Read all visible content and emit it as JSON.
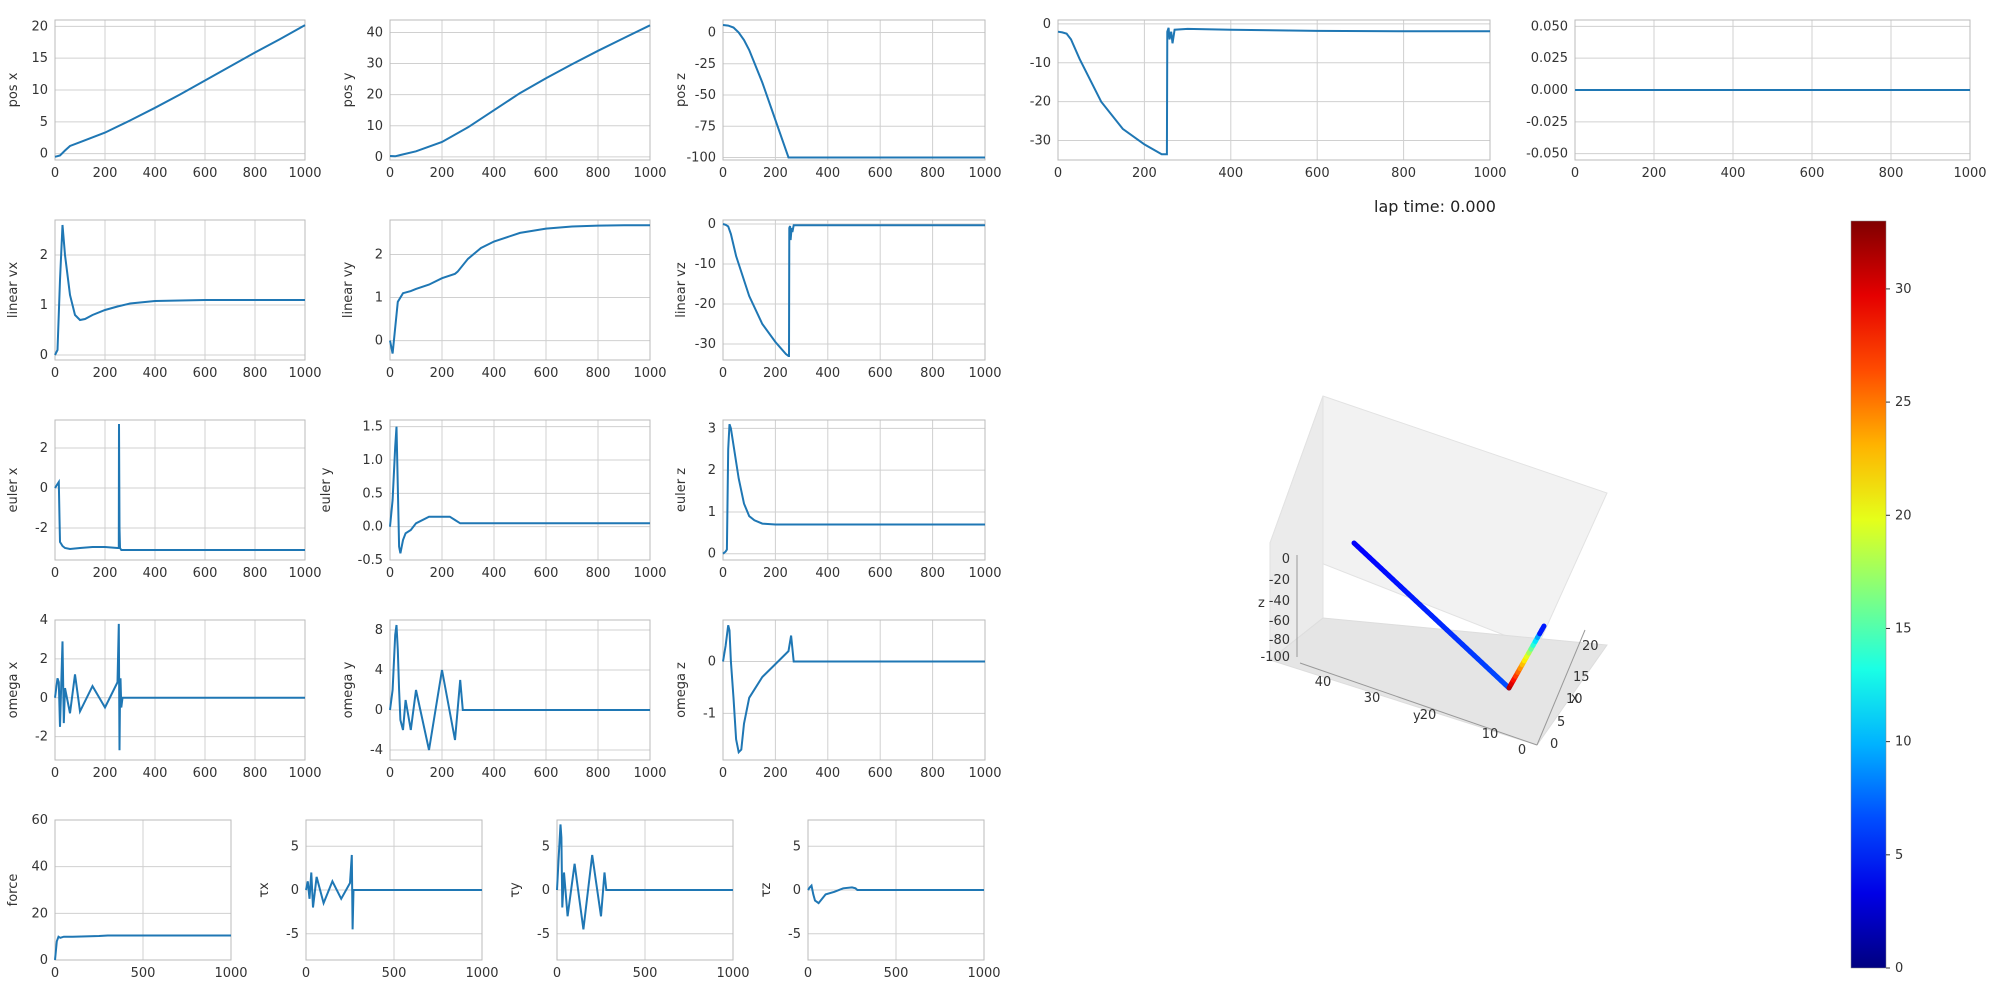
{
  "lap_time": {
    "label": "lap time:",
    "value": "0.000"
  },
  "colors": {
    "line": "#1f77b4",
    "grid": "#d0d0d0",
    "frame": "#bbbbbb",
    "text": "#333333"
  },
  "chart_data": [
    {
      "type": "line",
      "ylabel": "pos x",
      "xlim": [
        0,
        1000
      ],
      "ylim": [
        -1,
        21
      ],
      "xticks": [
        0,
        200,
        400,
        600,
        800,
        1000
      ],
      "yticks": [
        0,
        5,
        10,
        15,
        20
      ],
      "series": [
        {
          "x": [
            0,
            20,
            40,
            60,
            100,
            200,
            300,
            400,
            500,
            600,
            700,
            800,
            900,
            1000
          ],
          "y": [
            -0.5,
            -0.3,
            0.5,
            1.2,
            1.8,
            3.3,
            5.2,
            7.2,
            9.3,
            11.5,
            13.7,
            15.9,
            18.0,
            20.2
          ]
        }
      ]
    },
    {
      "type": "line",
      "ylabel": "pos y",
      "xlim": [
        0,
        1000
      ],
      "ylim": [
        -1,
        44
      ],
      "xticks": [
        0,
        200,
        400,
        600,
        800,
        1000
      ],
      "yticks": [
        0,
        10,
        20,
        30,
        40
      ],
      "series": [
        {
          "x": [
            0,
            20,
            40,
            100,
            200,
            300,
            400,
            500,
            600,
            700,
            800,
            900,
            1000
          ],
          "y": [
            0.3,
            0.2,
            0.6,
            1.8,
            4.8,
            9.5,
            15.0,
            20.5,
            25.3,
            29.8,
            34.1,
            38.2,
            42.3
          ]
        }
      ]
    },
    {
      "type": "line",
      "ylabel": "pos z",
      "xlim": [
        0,
        1000
      ],
      "ylim": [
        -102,
        10
      ],
      "xticks": [
        0,
        200,
        400,
        600,
        800,
        1000
      ],
      "yticks": [
        0,
        -25,
        -50,
        -75,
        -100
      ],
      "series": [
        {
          "x": [
            0,
            20,
            40,
            60,
            80,
            100,
            150,
            200,
            250,
            260,
            400,
            600,
            800,
            1000
          ],
          "y": [
            6,
            5.5,
            4,
            0,
            -6,
            -14,
            -40,
            -70,
            -100,
            -100,
            -100,
            -100,
            -100,
            -100
          ]
        }
      ]
    },
    {
      "type": "line",
      "ylabel": "",
      "xlim": [
        0,
        1000
      ],
      "ylim": [
        -35,
        1
      ],
      "xticks": [
        0,
        200,
        400,
        600,
        800,
        1000
      ],
      "yticks": [
        0,
        -10,
        -20,
        -30
      ],
      "series": [
        {
          "x": [
            0,
            10,
            20,
            30,
            50,
            100,
            150,
            200,
            240,
            250,
            252,
            253,
            256,
            258,
            262,
            265,
            270,
            300,
            400,
            600,
            800,
            1000
          ],
          "y": [
            -2,
            -2.2,
            -2.5,
            -4,
            -9,
            -20,
            -27,
            -31,
            -33.5,
            -33.5,
            -33.5,
            -2,
            -1,
            -4,
            -2,
            -5,
            -1.5,
            -1.3,
            -1.5,
            -1.8,
            -1.9,
            -1.9
          ]
        }
      ]
    },
    {
      "type": "line",
      "ylabel": "",
      "xlim": [
        0,
        1000
      ],
      "ylim": [
        -0.055,
        0.055
      ],
      "xticks": [
        0,
        200,
        400,
        600,
        800,
        1000
      ],
      "yticks": [
        0.05,
        0.025,
        0,
        -0.025,
        -0.05
      ],
      "ytick_labels": [
        "0.050",
        "0.025",
        "0.000",
        "-0.025",
        "-0.050"
      ],
      "series": [
        {
          "x": [
            0,
            1000
          ],
          "y": [
            0,
            0
          ]
        }
      ]
    },
    {
      "type": "line",
      "ylabel": "linear vx",
      "xlim": [
        0,
        1000
      ],
      "ylim": [
        -0.1,
        2.7
      ],
      "xticks": [
        0,
        200,
        400,
        600,
        800,
        1000
      ],
      "yticks": [
        0,
        1,
        2
      ],
      "series": [
        {
          "x": [
            0,
            10,
            20,
            30,
            40,
            60,
            80,
            100,
            120,
            150,
            200,
            250,
            300,
            400,
            600,
            800,
            1000
          ],
          "y": [
            0,
            0.1,
            1.5,
            2.6,
            2.0,
            1.2,
            0.8,
            0.7,
            0.72,
            0.8,
            0.9,
            0.97,
            1.03,
            1.08,
            1.1,
            1.1,
            1.1
          ]
        }
      ]
    },
    {
      "type": "line",
      "ylabel": "linear vy",
      "xlim": [
        0,
        1000
      ],
      "ylim": [
        -0.45,
        2.8
      ],
      "xticks": [
        0,
        200,
        400,
        600,
        800,
        1000
      ],
      "yticks": [
        0,
        1,
        2
      ],
      "series": [
        {
          "x": [
            0,
            10,
            20,
            30,
            50,
            80,
            100,
            150,
            200,
            250,
            260,
            300,
            350,
            400,
            500,
            600,
            700,
            800,
            900,
            1000
          ],
          "y": [
            0,
            -0.3,
            0.3,
            0.9,
            1.1,
            1.15,
            1.2,
            1.3,
            1.45,
            1.55,
            1.6,
            1.9,
            2.15,
            2.3,
            2.5,
            2.6,
            2.65,
            2.67,
            2.68,
            2.68
          ]
        }
      ]
    },
    {
      "type": "line",
      "ylabel": "linear vz",
      "xlim": [
        0,
        1000
      ],
      "ylim": [
        -34,
        1
      ],
      "xticks": [
        0,
        200,
        400,
        600,
        800,
        1000
      ],
      "yticks": [
        0,
        -10,
        -20,
        -30
      ],
      "series": [
        {
          "x": [
            0,
            10,
            20,
            30,
            50,
            100,
            150,
            200,
            240,
            250,
            252,
            253,
            256,
            258,
            262,
            265,
            270,
            300,
            400,
            600,
            800,
            1000
          ],
          "y": [
            0,
            -0.2,
            -0.6,
            -2.5,
            -8,
            -18,
            -25,
            -29.5,
            -32.5,
            -33,
            -33,
            -1,
            -0.5,
            -4,
            -1,
            -2,
            -0.3,
            -0.3,
            -0.3,
            -0.3,
            -0.3,
            -0.3
          ]
        }
      ]
    },
    {
      "type": "line",
      "ylabel": "euler x",
      "xlim": [
        0,
        1000
      ],
      "ylim": [
        -3.6,
        3.4
      ],
      "xticks": [
        0,
        200,
        400,
        600,
        800,
        1000
      ],
      "yticks": [
        -2,
        0,
        2
      ],
      "series": [
        {
          "x": [
            0,
            10,
            15,
            18,
            20,
            25,
            30,
            40,
            60,
            100,
            150,
            200,
            250,
            255,
            256,
            258,
            260,
            265,
            270,
            300,
            500,
            700,
            1000
          ],
          "y": [
            0,
            0.2,
            0.3,
            -1.5,
            -2.7,
            -2.8,
            -2.9,
            -3.0,
            -3.05,
            -3.0,
            -2.95,
            -2.95,
            -3.0,
            -3.0,
            3.2,
            -2.0,
            -3.0,
            -3.1,
            -3.1,
            -3.1,
            -3.1,
            -3.1,
            -3.1
          ]
        }
      ]
    },
    {
      "type": "line",
      "ylabel": "euler y",
      "xlim": [
        0,
        1000
      ],
      "ylim": [
        -0.5,
        1.6
      ],
      "xticks": [
        0,
        200,
        400,
        600,
        800,
        1000
      ],
      "yticks": [
        -0.5,
        0,
        0.5,
        1,
        1.5
      ],
      "ytick_labels": [
        "-0.5",
        "0.0",
        "0.5",
        "1.0",
        "1.5"
      ],
      "series": [
        {
          "x": [
            0,
            10,
            20,
            25,
            30,
            35,
            40,
            50,
            60,
            80,
            100,
            150,
            200,
            230,
            250,
            270,
            280,
            300,
            400,
            600,
            800,
            1000
          ],
          "y": [
            0,
            0.4,
            1.2,
            1.5,
            0.6,
            -0.3,
            -0.4,
            -0.2,
            -0.1,
            -0.05,
            0.05,
            0.15,
            0.15,
            0.15,
            0.1,
            0.05,
            0.05,
            0.05,
            0.05,
            0.05,
            0.05,
            0.05
          ]
        }
      ]
    },
    {
      "type": "line",
      "ylabel": "euler z",
      "xlim": [
        0,
        1000
      ],
      "ylim": [
        -0.15,
        3.2
      ],
      "xticks": [
        0,
        200,
        400,
        600,
        800,
        1000
      ],
      "yticks": [
        0,
        1,
        2,
        3
      ],
      "series": [
        {
          "x": [
            0,
            10,
            15,
            20,
            25,
            30,
            40,
            60,
            80,
            100,
            120,
            150,
            200,
            250,
            300,
            500,
            700,
            1000
          ],
          "y": [
            0,
            0.05,
            0.1,
            2.5,
            3.1,
            3.0,
            2.6,
            1.8,
            1.2,
            0.9,
            0.8,
            0.72,
            0.7,
            0.7,
            0.7,
            0.7,
            0.7,
            0.7
          ]
        }
      ]
    },
    {
      "type": "line",
      "ylabel": "omega x",
      "xlim": [
        0,
        1000
      ],
      "ylim": [
        -3.2,
        4
      ],
      "xticks": [
        0,
        200,
        400,
        600,
        800,
        1000
      ],
      "yticks": [
        -2,
        0,
        2,
        4
      ],
      "series": [
        {
          "x": [
            0,
            10,
            15,
            20,
            30,
            35,
            40,
            60,
            80,
            100,
            150,
            200,
            250,
            255,
            258,
            260,
            262,
            265,
            270,
            300,
            500,
            700,
            1000
          ],
          "y": [
            0,
            1,
            0.8,
            -1.5,
            2.9,
            -1.3,
            0.5,
            -0.8,
            1.2,
            -0.7,
            0.6,
            -0.5,
            0.8,
            3.8,
            -2.7,
            0,
            1,
            -0.5,
            0,
            0,
            0,
            0,
            0
          ]
        }
      ]
    },
    {
      "type": "line",
      "ylabel": "omega y",
      "xlim": [
        0,
        1000
      ],
      "ylim": [
        -5,
        9
      ],
      "xticks": [
        0,
        200,
        400,
        600,
        800,
        1000
      ],
      "yticks": [
        -4,
        0,
        4,
        8
      ],
      "series": [
        {
          "x": [
            0,
            10,
            20,
            25,
            30,
            35,
            40,
            50,
            60,
            80,
            100,
            150,
            200,
            250,
            270,
            280,
            300,
            400,
            600,
            800,
            1000
          ],
          "y": [
            0,
            2,
            7.5,
            8.5,
            6,
            2,
            -1,
            -2,
            1,
            -2,
            2,
            -4,
            4,
            -3,
            3,
            0,
            0,
            0,
            0,
            0,
            0
          ]
        }
      ]
    },
    {
      "type": "line",
      "ylabel": "omega z",
      "xlim": [
        0,
        1000
      ],
      "ylim": [
        -1.9,
        0.8
      ],
      "xticks": [
        0,
        200,
        400,
        600,
        800,
        1000
      ],
      "yticks": [
        -1,
        0
      ],
      "series": [
        {
          "x": [
            0,
            10,
            20,
            25,
            30,
            40,
            50,
            60,
            70,
            80,
            100,
            150,
            200,
            250,
            260,
            270,
            280,
            300,
            500,
            700,
            1000
          ],
          "y": [
            0,
            0.3,
            0.7,
            0.6,
            0,
            -0.7,
            -1.5,
            -1.75,
            -1.7,
            -1.2,
            -0.7,
            -0.3,
            -0.05,
            0.2,
            0.5,
            0,
            0,
            0,
            0,
            0,
            0
          ]
        }
      ]
    },
    {
      "type": "line",
      "ylabel": "force",
      "xlim": [
        0,
        1000
      ],
      "ylim": [
        0,
        60
      ],
      "xticks": [
        0,
        500,
        1000
      ],
      "yticks": [
        0,
        20,
        40,
        60
      ],
      "series": [
        {
          "x": [
            0,
            10,
            20,
            30,
            50,
            100,
            200,
            250,
            300,
            500,
            1000
          ],
          "y": [
            0,
            8,
            10,
            9.5,
            10,
            10,
            10.2,
            10.3,
            10.5,
            10.5,
            10.5
          ]
        }
      ]
    },
    {
      "type": "line",
      "ylabel": "τx",
      "xlim": [
        0,
        1000
      ],
      "ylim": [
        -8,
        8
      ],
      "xticks": [
        0,
        500,
        1000
      ],
      "yticks": [
        -5,
        0,
        5
      ],
      "series": [
        {
          "x": [
            0,
            10,
            20,
            30,
            40,
            60,
            100,
            150,
            200,
            250,
            260,
            265,
            270,
            280,
            300,
            500,
            700,
            1000
          ],
          "y": [
            0,
            1,
            -1,
            2,
            -2,
            1.5,
            -1.5,
            1,
            -1,
            0.8,
            4,
            -4.5,
            0,
            0,
            0,
            0,
            0,
            0
          ]
        }
      ]
    },
    {
      "type": "line",
      "ylabel": "τy",
      "xlim": [
        0,
        1000
      ],
      "ylim": [
        -8,
        8
      ],
      "xticks": [
        0,
        500,
        1000
      ],
      "yticks": [
        -5,
        0,
        5
      ],
      "series": [
        {
          "x": [
            0,
            10,
            20,
            25,
            30,
            40,
            60,
            100,
            150,
            200,
            250,
            270,
            280,
            300,
            500,
            700,
            1000
          ],
          "y": [
            0,
            4,
            7.5,
            6,
            -2,
            2,
            -3,
            3,
            -4.5,
            4,
            -3,
            2,
            0,
            0,
            0,
            0,
            0
          ]
        }
      ]
    },
    {
      "type": "line",
      "ylabel": "τz",
      "xlim": [
        0,
        1000
      ],
      "ylim": [
        -8,
        8
      ],
      "xticks": [
        0,
        500,
        1000
      ],
      "yticks": [
        -5,
        0,
        5
      ],
      "series": [
        {
          "x": [
            0,
            10,
            20,
            30,
            40,
            60,
            80,
            100,
            150,
            200,
            250,
            270,
            280,
            300,
            500,
            700,
            1000
          ],
          "y": [
            0,
            0.3,
            0.5,
            -0.5,
            -1.2,
            -1.5,
            -1.0,
            -0.5,
            -0.2,
            0.2,
            0.3,
            0.2,
            0,
            0,
            0,
            0,
            0
          ]
        }
      ]
    },
    {
      "type": "scatter3d",
      "xlabel": "x",
      "ylabel": "y",
      "zlabel": "z",
      "x_ticks": [
        0,
        5,
        10,
        15,
        20
      ],
      "y_ticks": [
        40,
        30,
        20,
        10,
        0
      ],
      "z_ticks": [
        0,
        -20,
        -40,
        -60,
        -80,
        -100
      ],
      "colormap": "jet",
      "colorbar_ticks": [
        0,
        5,
        10,
        15,
        20,
        25,
        30
      ],
      "colorbar_range": [
        0,
        33
      ],
      "trajectory_summary": {
        "start": {
          "x": 0,
          "y": 0,
          "z": 0
        },
        "bottom": {
          "x": 8,
          "y": 8,
          "z": -100
        },
        "end": {
          "x": 20,
          "y": 42,
          "z": -100
        }
      }
    }
  ]
}
